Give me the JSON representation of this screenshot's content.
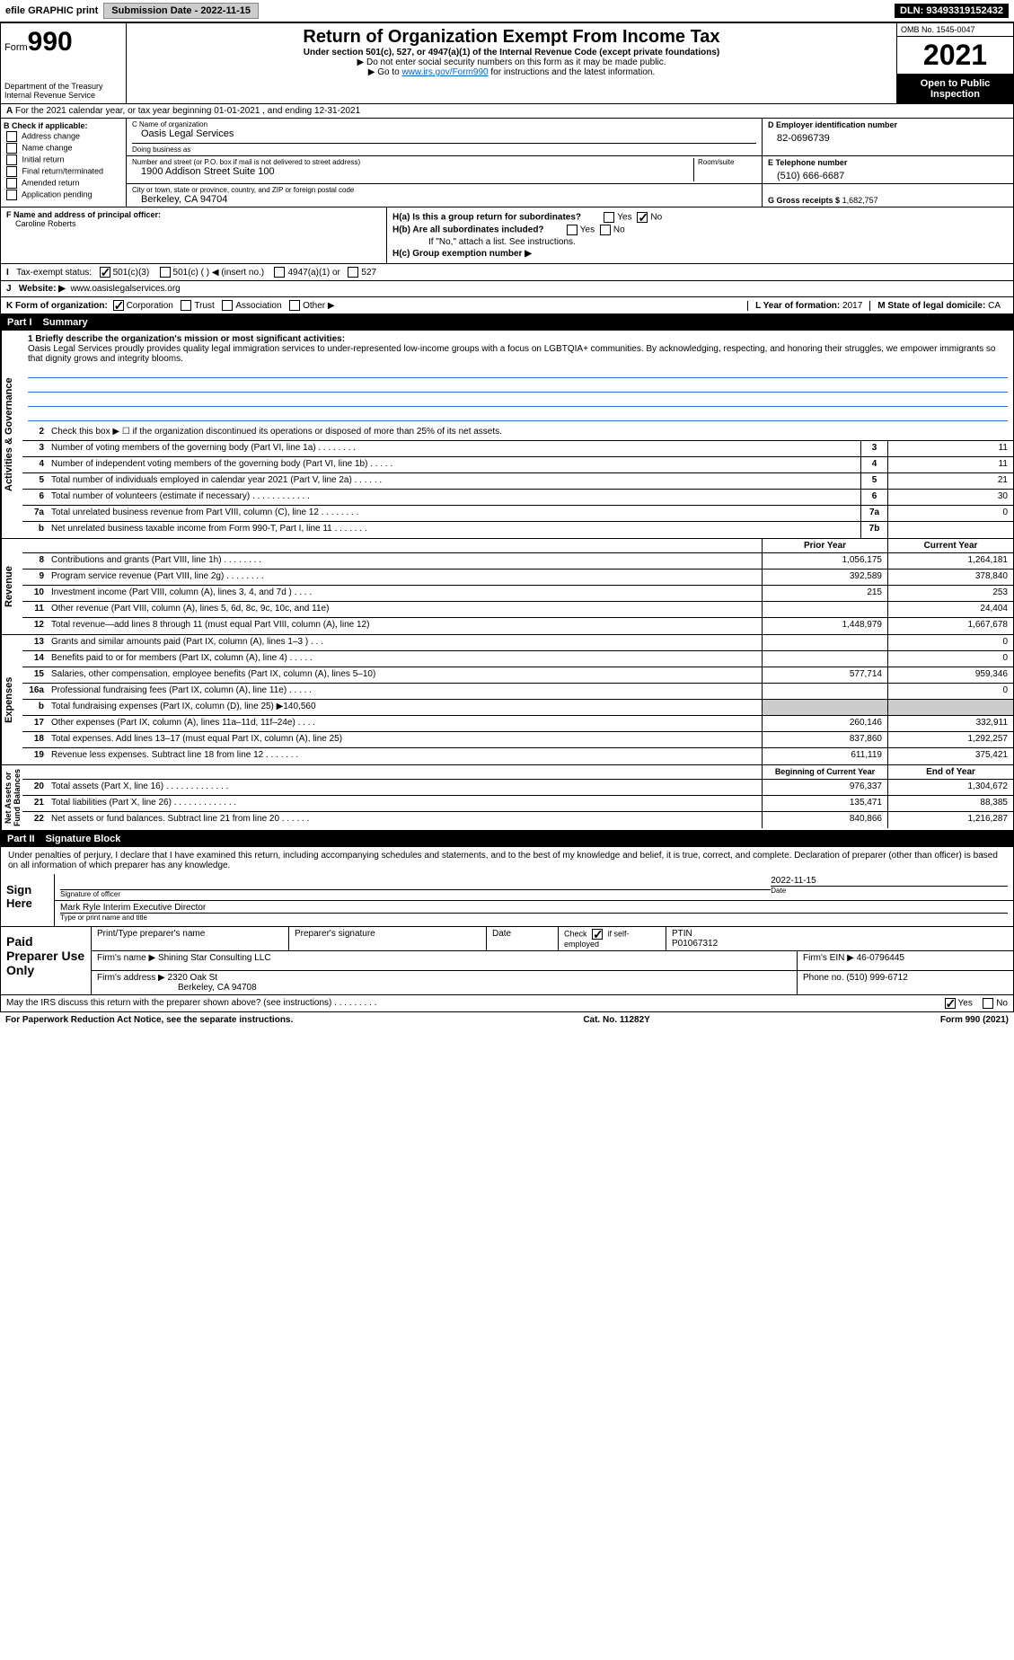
{
  "top_bar": {
    "efile_label": "efile GRAPHIC print",
    "submission_label": "Submission Date - 2022-11-15",
    "dln": "DLN: 93493319152432"
  },
  "header": {
    "form_label": "Form",
    "form_no": "990",
    "dept": "Department of the Treasury\nInternal Revenue Service",
    "title": "Return of Organization Exempt From Income Tax",
    "sub": "Under section 501(c), 527, or 4947(a)(1) of the Internal Revenue Code (except private foundations)",
    "note": "▶ Do not enter social security numbers on this form as it may be made public.",
    "link_prefix": "▶ Go to ",
    "link_url": "www.irs.gov/Form990",
    "link_suffix": " for instructions and the latest information.",
    "omb": "OMB No. 1545-0047",
    "year": "2021",
    "inspect": "Open to Public Inspection"
  },
  "row_a": "For the 2021 calendar year, or tax year beginning 01-01-2021     , and ending 12-31-2021",
  "col_b": {
    "title": "B Check if applicable:",
    "items": [
      "Address change",
      "Name change",
      "Initial return",
      "Final return/terminated",
      "Amended return",
      "Application pending"
    ]
  },
  "col_c": {
    "name_label": "C Name of organization",
    "name": "Oasis Legal Services",
    "dba_label": "Doing business as",
    "dba": "",
    "street_label": "Number and street (or P.O. box if mail is not delivered to street address)",
    "room_label": "Room/suite",
    "street": "1900 Addison Street Suite 100",
    "city_label": "City or town, state or province, country, and ZIP or foreign postal code",
    "city": "Berkeley, CA  94704"
  },
  "col_d": {
    "ein_label": "D Employer identification number",
    "ein": "82-0696739",
    "phone_label": "E Telephone number",
    "phone": "(510) 666-6687",
    "gross_label": "G Gross receipts $",
    "gross": "1,682,757"
  },
  "section_f": {
    "label": "F  Name and address of principal officer:",
    "name": "Caroline Roberts"
  },
  "section_h": {
    "a": "H(a)  Is this a group return for subordinates?",
    "b": "H(b)  Are all subordinates included?",
    "b_note": "If \"No,\" attach a list. See instructions.",
    "c": "H(c)  Group exemption number ▶"
  },
  "row_i": {
    "label": "Tax-exempt status:",
    "o1": "501(c)(3)",
    "o2": "501(c) (   ) ◀ (insert no.)",
    "o3": "4947(a)(1) or",
    "o4": "527"
  },
  "row_j": {
    "label": "Website: ▶",
    "val": "www.oasislegalservices.org"
  },
  "row_k": {
    "label": "K Form of organization:",
    "opts": [
      "Corporation",
      "Trust",
      "Association",
      "Other ▶"
    ],
    "l_label": "L Year of formation:",
    "l_val": "2017",
    "m_label": "M State of legal domicile:",
    "m_val": "CA"
  },
  "part1": {
    "num": "Part I",
    "title": "Summary"
  },
  "mission": {
    "label": "1  Briefly describe the organization's mission or most significant activities:",
    "text": "Oasis Legal Services proudly provides quality legal immigration services to under-represented low-income groups with a focus on LGBTQIA+ communities. By acknowledging, respecting, and honoring their struggles, we empower immigrants so that dignity grows and integrity blooms."
  },
  "gov_rows": [
    {
      "n": "2",
      "d": "Check this box ▶ ☐  if the organization discontinued its operations or disposed of more than 25% of its net assets.",
      "cn": "",
      "v": ""
    },
    {
      "n": "3",
      "d": "Number of voting members of the governing body (Part VI, line 1a)   .     .     .     .     .     .     .     .",
      "cn": "3",
      "v": "11"
    },
    {
      "n": "4",
      "d": "Number of independent voting members of the governing body (Part VI, line 1b)   .     .     .     .     .",
      "cn": "4",
      "v": "11"
    },
    {
      "n": "5",
      "d": "Total number of individuals employed in calendar year 2021 (Part V, line 2a)   .     .     .     .     .     .",
      "cn": "5",
      "v": "21"
    },
    {
      "n": "6",
      "d": "Total number of volunteers (estimate if necessary)   .     .     .     .     .     .     .     .     .     .     .     .",
      "cn": "6",
      "v": "30"
    },
    {
      "n": "7a",
      "d": "Total unrelated business revenue from Part VIII, column (C), line 12   .     .     .     .     .     .     .     .",
      "cn": "7a",
      "v": "0"
    },
    {
      "n": "b",
      "d": "Net unrelated business taxable income from Form 990-T, Part I, line 11   .     .     .     .     .     .     .",
      "cn": "7b",
      "v": ""
    }
  ],
  "rev_hdr": {
    "py": "Prior Year",
    "cy": "Current Year"
  },
  "rev_rows": [
    {
      "n": "8",
      "d": "Contributions and grants (Part VIII, line 1h)   .     .     .     .     .     .     .     .",
      "py": "1,056,175",
      "cy": "1,264,181"
    },
    {
      "n": "9",
      "d": "Program service revenue (Part VIII, line 2g)   .     .     .     .     .     .     .     .",
      "py": "392,589",
      "cy": "378,840"
    },
    {
      "n": "10",
      "d": "Investment income (Part VIII, column (A), lines 3, 4, and 7d )   .     .     .     .",
      "py": "215",
      "cy": "253"
    },
    {
      "n": "11",
      "d": "Other revenue (Part VIII, column (A), lines 5, 6d, 8c, 9c, 10c, and 11e)",
      "py": "",
      "cy": "24,404"
    },
    {
      "n": "12",
      "d": "Total revenue—add lines 8 through 11 (must equal Part VIII, column (A), line 12)",
      "py": "1,448,979",
      "cy": "1,667,678"
    }
  ],
  "exp_rows": [
    {
      "n": "13",
      "d": "Grants and similar amounts paid (Part IX, column (A), lines 1–3 )   .     .     .",
      "py": "",
      "cy": "0"
    },
    {
      "n": "14",
      "d": "Benefits paid to or for members (Part IX, column (A), line 4)   .     .     .     .     .",
      "py": "",
      "cy": "0"
    },
    {
      "n": "15",
      "d": "Salaries, other compensation, employee benefits (Part IX, column (A), lines 5–10)",
      "py": "577,714",
      "cy": "959,346"
    },
    {
      "n": "16a",
      "d": "Professional fundraising fees (Part IX, column (A), line 11e)   .     .     .     .     .",
      "py": "",
      "cy": "0"
    },
    {
      "n": "b",
      "d": "Total fundraising expenses (Part IX, column (D), line 25) ▶140,560",
      "py": "shade",
      "cy": "shade"
    },
    {
      "n": "17",
      "d": "Other expenses (Part IX, column (A), lines 11a–11d, 11f–24e)   .     .     .     .",
      "py": "260,146",
      "cy": "332,911"
    },
    {
      "n": "18",
      "d": "Total expenses. Add lines 13–17 (must equal Part IX, column (A), line 25)",
      "py": "837,860",
      "cy": "1,292,257"
    },
    {
      "n": "19",
      "d": "Revenue less expenses. Subtract line 18 from line 12   .     .     .     .     .     .     .",
      "py": "611,119",
      "cy": "375,421"
    }
  ],
  "na_hdr": {
    "py": "Beginning of Current Year",
    "cy": "End of Year"
  },
  "na_rows": [
    {
      "n": "20",
      "d": "Total assets (Part X, line 16)   .     .     .     .     .     .     .     .     .     .     .     .     .",
      "py": "976,337",
      "cy": "1,304,672"
    },
    {
      "n": "21",
      "d": "Total liabilities (Part X, line 26)   .     .     .     .     .     .     .     .     .     .     .     .     .",
      "py": "135,471",
      "cy": "88,385"
    },
    {
      "n": "22",
      "d": "Net assets or fund balances. Subtract line 21 from line 20   .     .     .     .     .     .",
      "py": "840,866",
      "cy": "1,216,287"
    }
  ],
  "side_labels": {
    "gov": "Activities & Governance",
    "rev": "Revenue",
    "exp": "Expenses",
    "na": "Net Assets or\nFund Balances"
  },
  "part2": {
    "num": "Part II",
    "title": "Signature Block"
  },
  "sig": {
    "intro": "Under penalties of perjury, I declare that I have examined this return, including accompanying schedules and statements, and to the best of my knowledge and belief, it is true, correct, and complete. Declaration of preparer (other than officer) is based on all information of which preparer has any knowledge.",
    "sign_here": "Sign Here",
    "sig_label": "Signature of officer",
    "date": "2022-11-15",
    "date_label": "Date",
    "name": "Mark Ryle Interim Executive Director",
    "name_label": "Type or print name and title"
  },
  "prep": {
    "title": "Paid Preparer Use Only",
    "h1": "Print/Type preparer's name",
    "h2": "Preparer's signature",
    "h3": "Date",
    "h4_a": "Check",
    "h4_b": "if self-employed",
    "h5": "PTIN",
    "ptin": "P01067312",
    "firm_label": "Firm's name    ▶",
    "firm": "Shining Star Consulting LLC",
    "ein_label": "Firm's EIN ▶",
    "ein": "46-0796445",
    "addr_label": "Firm's address ▶",
    "addr1": "2320 Oak St",
    "addr2": "Berkeley, CA  94708",
    "phone_label": "Phone no.",
    "phone": "(510) 999-6712"
  },
  "discuss": "May the IRS discuss this return with the preparer shown above? (see instructions)   .     .     .     .     .     .     .     .     .",
  "footer": {
    "pra": "For Paperwork Reduction Act Notice, see the separate instructions.",
    "cat": "Cat. No. 11282Y",
    "form": "Form 990 (2021)"
  }
}
